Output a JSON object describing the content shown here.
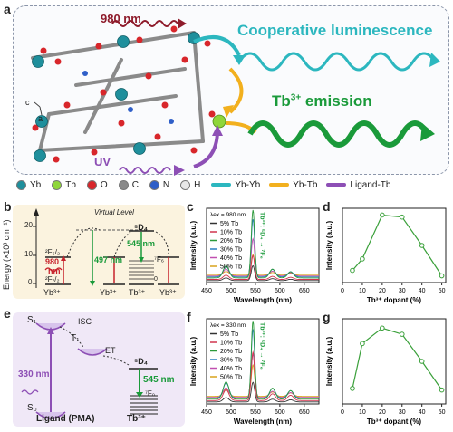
{
  "panel_labels": {
    "a": "a",
    "b": "b",
    "c": "c",
    "d": "d",
    "e": "e",
    "f": "f",
    "g": "g"
  },
  "panel_a": {
    "excitation_980": "980 nm",
    "excitation_uv": "UV",
    "cooperative_label": "Cooperative luminescence",
    "tb_emission_label": "Tb",
    "tb_emission_sup": "3+",
    "tb_emission_rest": " emission",
    "axis_c": "c",
    "axis_a": "a",
    "legend": [
      {
        "label": "Yb",
        "color": "#1f8f9c"
      },
      {
        "label": "Tb",
        "color": "#8fd63a"
      },
      {
        "label": "O",
        "color": "#d8262b"
      },
      {
        "label": "C",
        "color": "#8a8a8a"
      },
      {
        "label": "N",
        "color": "#2f5fc8"
      },
      {
        "label": "H",
        "color": "#e8e8e8"
      }
    ],
    "arrow_legend": [
      {
        "label": "Yb-Yb",
        "color": "#2cb7bf"
      },
      {
        "label": "Yb-Tb",
        "color": "#f2b01e"
      },
      {
        "label": "Ligand-Tb",
        "color": "#8d4fb5"
      }
    ],
    "colors": {
      "cooperative": "#2cb7bf",
      "tb_emission": "#1a9a3a",
      "ir": "#8e1b2b",
      "uv": "#8d4fb5"
    }
  },
  "panel_b": {
    "y_axis_label": "Energy (×10³ cm⁻¹)",
    "y_ticks": [
      "0",
      "10",
      "20"
    ],
    "virtual_level": "Virtual Level",
    "term_f52": "²F₅/₂",
    "term_f72": "²F₇/₂",
    "term_d4": "⁵D₄",
    "term_f6": "⁷F₆",
    "term_f0": "0",
    "ion_yb1": "Yb³⁺",
    "ion_yb2": "Yb³⁺",
    "ion_tb": "Tb³⁺",
    "ion_yb3": "Yb³⁺",
    "label_980": "980",
    "label_980_unit": "nm",
    "label_497": "497 nm",
    "label_545": "545 nm"
  },
  "panel_e": {
    "s1": "S₁",
    "s0": "S₀",
    "t1": "T₁",
    "isc": "ISC",
    "et": "ET",
    "label_330": "330 nm",
    "d4": "⁵D₄",
    "label_545": "545 nm",
    "f0": "⁷F₀",
    "ligand": "Ligand (PMA)",
    "tb": "Tb³⁺"
  },
  "chart_data": [
    {
      "id": "c",
      "type": "line",
      "xlabel": "Wavelength (nm)",
      "ylabel": "Intensity (a.u.)",
      "xlim": [
        450,
        680
      ],
      "xticks": [
        "450",
        "500",
        "550",
        "600",
        "650"
      ],
      "excitation": "λex = 980 nm",
      "transition": "Tb³⁺: ⁵D₄ → ⁷F₆",
      "peaks": [
        [
          490,
          0.18
        ],
        [
          545,
          1.0
        ],
        [
          585,
          0.13
        ],
        [
          622,
          0.09
        ]
      ],
      "series": [
        {
          "name": "5% Tb",
          "color": "#333333",
          "amp": 0.22
        },
        {
          "name": "10% Tb",
          "color": "#d0344d",
          "amp": 0.35
        },
        {
          "name": "20% Tb",
          "color": "#2c9a3a",
          "amp": 1.0
        },
        {
          "name": "30% Tb",
          "color": "#2b7fc1",
          "amp": 0.85
        },
        {
          "name": "40% Tb",
          "color": "#c04fb0",
          "amp": 0.55
        },
        {
          "name": "50% Tb",
          "color": "#d9a21c",
          "amp": 0.3
        }
      ]
    },
    {
      "id": "d",
      "type": "line",
      "xlabel": "Tb³⁺ dopant (%)",
      "ylabel": "Intensity (a.u.)",
      "xlim": [
        0,
        52
      ],
      "ylim": [
        0,
        1.1
      ],
      "xticks": [
        0,
        10,
        20,
        30,
        40,
        50
      ],
      "x": [
        5,
        10,
        20,
        30,
        40,
        50
      ],
      "y": [
        0.18,
        0.35,
        1.0,
        0.97,
        0.55,
        0.1
      ],
      "color": "#3aa03a"
    },
    {
      "id": "f",
      "type": "line",
      "xlabel": "Wavelength (nm)",
      "ylabel": "Intensity (a.u.)",
      "xlim": [
        450,
        680
      ],
      "xticks": [
        "450",
        "500",
        "550",
        "600",
        "650"
      ],
      "excitation": "λex = 330 nm",
      "transition": "Tb³⁺: ⁵D₄ → ⁷F₆",
      "peaks": [
        [
          490,
          0.22
        ],
        [
          545,
          1.0
        ],
        [
          585,
          0.14
        ],
        [
          622,
          0.11
        ]
      ],
      "series": [
        {
          "name": "5% Tb",
          "color": "#333333",
          "amp": 0.25
        },
        {
          "name": "10% Tb",
          "color": "#d0344d",
          "amp": 0.62
        },
        {
          "name": "20% Tb",
          "color": "#2c9a3a",
          "amp": 1.0
        },
        {
          "name": "30% Tb",
          "color": "#2b7fc1",
          "amp": 0.88
        },
        {
          "name": "40% Tb",
          "color": "#c04fb0",
          "amp": 0.55
        },
        {
          "name": "50% Tb",
          "color": "#d9a21c",
          "amp": 0.4
        }
      ]
    },
    {
      "id": "g",
      "type": "line",
      "xlabel": "Tb³⁺ dopant (%)",
      "ylabel": "Intensity (a.u.)",
      "xlim": [
        0,
        52
      ],
      "ylim": [
        0,
        1.1
      ],
      "xticks": [
        0,
        10,
        20,
        30,
        40,
        50
      ],
      "x": [
        5,
        10,
        20,
        30,
        40,
        50
      ],
      "y": [
        0.2,
        0.78,
        0.98,
        0.9,
        0.55,
        0.18
      ],
      "color": "#3aa03a"
    }
  ]
}
